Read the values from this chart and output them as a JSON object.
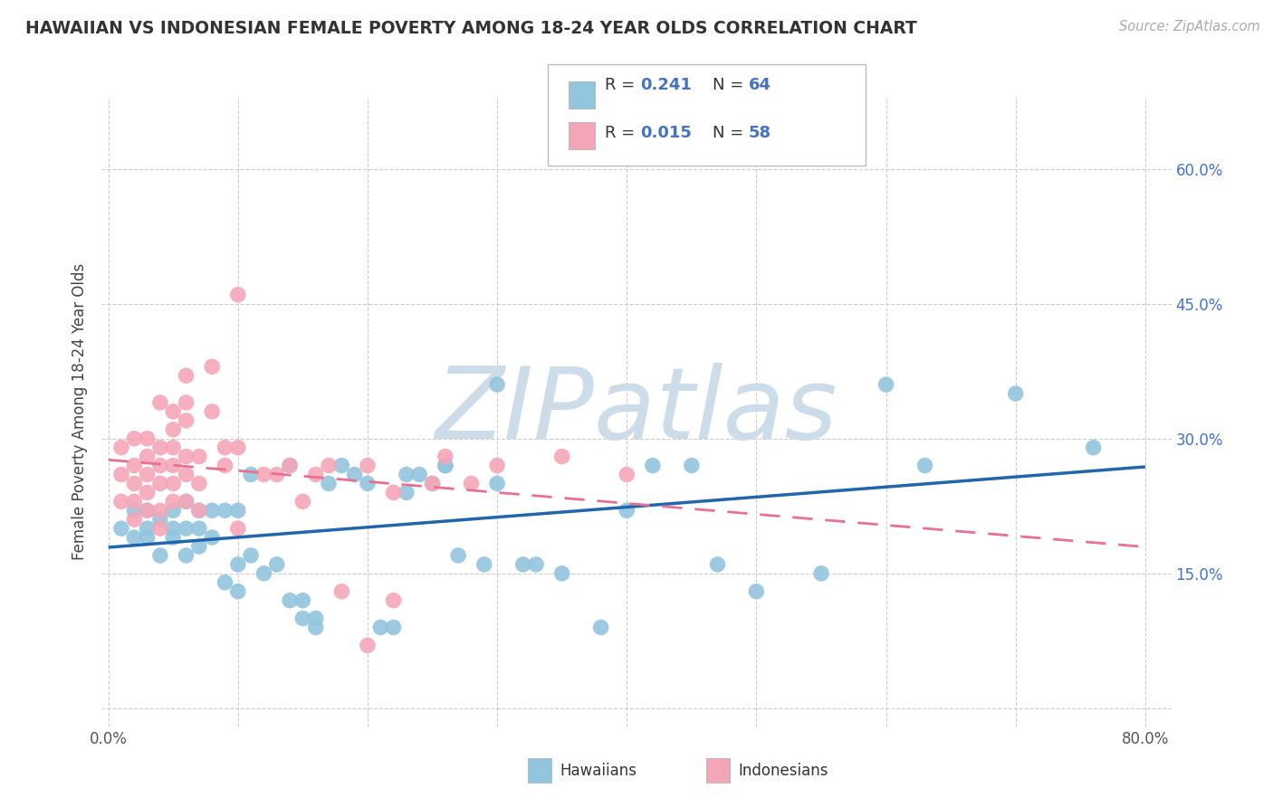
{
  "title": "HAWAIIAN VS INDONESIAN FEMALE POVERTY AMONG 18-24 YEAR OLDS CORRELATION CHART",
  "source": "Source: ZipAtlas.com",
  "ylabel": "Female Poverty Among 18-24 Year Olds",
  "x_ticks": [
    0.0,
    0.1,
    0.2,
    0.3,
    0.4,
    0.5,
    0.6,
    0.7,
    0.8
  ],
  "y_ticks": [
    0.0,
    0.15,
    0.3,
    0.45,
    0.6
  ],
  "xlim": [
    -0.005,
    0.82
  ],
  "ylim": [
    -0.02,
    0.68
  ],
  "hawaiian_color": "#92c5de",
  "indonesian_color": "#f4a6b8",
  "hawaiian_trend_color": "#2166ac",
  "indonesian_trend_color": "#e87090",
  "watermark": "ZIPatlas",
  "watermark_color": "#ccdce8",
  "legend_color": "#4472c4",
  "hawaiian_scatter_x": [
    0.01,
    0.02,
    0.02,
    0.03,
    0.03,
    0.03,
    0.04,
    0.04,
    0.05,
    0.05,
    0.05,
    0.06,
    0.06,
    0.06,
    0.07,
    0.07,
    0.07,
    0.08,
    0.08,
    0.09,
    0.09,
    0.1,
    0.1,
    0.1,
    0.11,
    0.11,
    0.12,
    0.13,
    0.14,
    0.14,
    0.15,
    0.15,
    0.16,
    0.16,
    0.17,
    0.18,
    0.19,
    0.2,
    0.21,
    0.22,
    0.23,
    0.23,
    0.24,
    0.25,
    0.26,
    0.26,
    0.27,
    0.29,
    0.3,
    0.3,
    0.32,
    0.33,
    0.35,
    0.38,
    0.4,
    0.42,
    0.45,
    0.47,
    0.5,
    0.55,
    0.6,
    0.63,
    0.7,
    0.76
  ],
  "hawaiian_scatter_y": [
    0.2,
    0.19,
    0.22,
    0.2,
    0.22,
    0.19,
    0.21,
    0.17,
    0.19,
    0.22,
    0.2,
    0.17,
    0.2,
    0.23,
    0.18,
    0.2,
    0.22,
    0.19,
    0.22,
    0.14,
    0.22,
    0.13,
    0.16,
    0.22,
    0.17,
    0.26,
    0.15,
    0.16,
    0.27,
    0.12,
    0.1,
    0.12,
    0.1,
    0.09,
    0.25,
    0.27,
    0.26,
    0.25,
    0.09,
    0.09,
    0.24,
    0.26,
    0.26,
    0.25,
    0.27,
    0.27,
    0.17,
    0.16,
    0.25,
    0.36,
    0.16,
    0.16,
    0.15,
    0.09,
    0.22,
    0.27,
    0.27,
    0.16,
    0.13,
    0.15,
    0.36,
    0.27,
    0.35,
    0.29
  ],
  "indonesian_scatter_x": [
    0.01,
    0.01,
    0.01,
    0.02,
    0.02,
    0.02,
    0.02,
    0.02,
    0.03,
    0.03,
    0.03,
    0.03,
    0.03,
    0.04,
    0.04,
    0.04,
    0.04,
    0.04,
    0.04,
    0.05,
    0.05,
    0.05,
    0.05,
    0.05,
    0.05,
    0.06,
    0.06,
    0.06,
    0.06,
    0.06,
    0.06,
    0.07,
    0.07,
    0.07,
    0.08,
    0.08,
    0.09,
    0.09,
    0.1,
    0.1,
    0.1,
    0.12,
    0.13,
    0.14,
    0.15,
    0.16,
    0.17,
    0.18,
    0.2,
    0.2,
    0.22,
    0.22,
    0.25,
    0.26,
    0.28,
    0.3,
    0.35,
    0.4
  ],
  "indonesian_scatter_y": [
    0.26,
    0.29,
    0.23,
    0.3,
    0.27,
    0.25,
    0.23,
    0.21,
    0.3,
    0.28,
    0.26,
    0.24,
    0.22,
    0.34,
    0.29,
    0.27,
    0.25,
    0.22,
    0.2,
    0.33,
    0.31,
    0.29,
    0.27,
    0.25,
    0.23,
    0.37,
    0.34,
    0.32,
    0.28,
    0.26,
    0.23,
    0.28,
    0.25,
    0.22,
    0.38,
    0.33,
    0.29,
    0.27,
    0.46,
    0.29,
    0.2,
    0.26,
    0.26,
    0.27,
    0.23,
    0.26,
    0.27,
    0.13,
    0.27,
    0.07,
    0.24,
    0.12,
    0.25,
    0.28,
    0.25,
    0.27,
    0.28,
    0.26
  ]
}
